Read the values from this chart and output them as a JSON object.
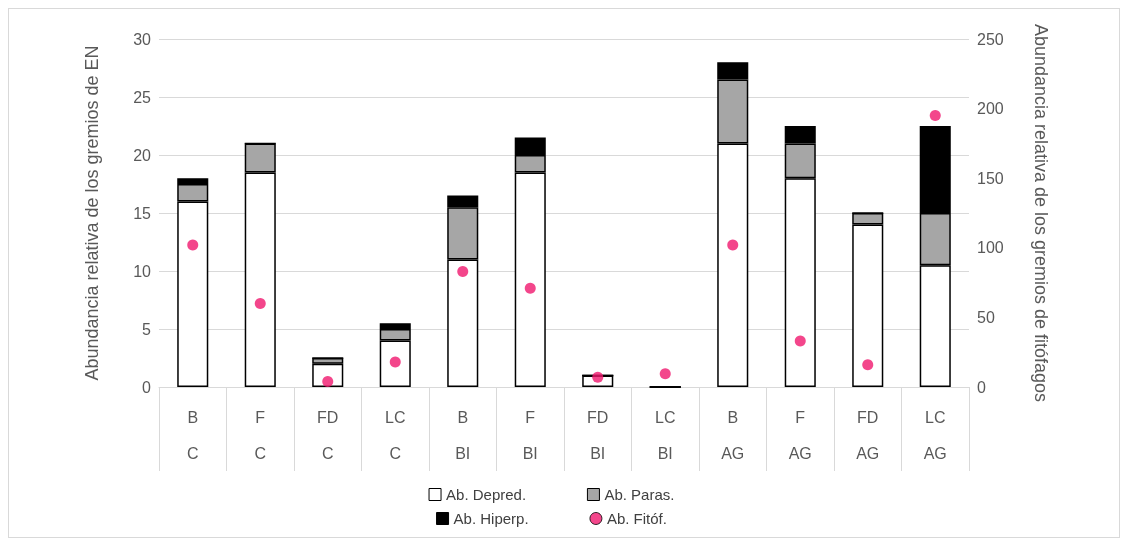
{
  "chart_data": {
    "type": "bar",
    "stacked": true,
    "ylabel": "Abundancia relativa de los gremios de EN",
    "y2label": "Abundancia relativa de los gremios de fitófagos",
    "categories": [
      "B\nC",
      "F\nC",
      "FD\nC",
      "LC\nC",
      "B\nBI",
      "F\nBI",
      "FD\nBI",
      "LC\nBI",
      "B\nAG",
      "F\nAG",
      "FD\nAG",
      "LC\nAG"
    ],
    "series": [
      {
        "name": "Ab. Depred.",
        "color": "#ffffff",
        "values": [
          16,
          18.5,
          2,
          4,
          11,
          18.5,
          1,
          0,
          21,
          18,
          14,
          10.5
        ]
      },
      {
        "name": "Ab. Paras.",
        "color": "#a6a6a6",
        "values": [
          1.5,
          2.5,
          0.5,
          1,
          4.5,
          1.5,
          0,
          0,
          5.5,
          3,
          1,
          4.5
        ]
      },
      {
        "name": "Ab. Hiperp.",
        "color": "#000000",
        "values": [
          0.5,
          0,
          0,
          0.5,
          1,
          1.5,
          0,
          0,
          1.5,
          1.5,
          0,
          7.5
        ]
      },
      {
        "name": "Ab. Fitóf.",
        "type": "scatter",
        "axis": "y2",
        "color": "#f0186e",
        "values": [
          102,
          60,
          4,
          18,
          83,
          71,
          7,
          9.5,
          102,
          33,
          16,
          195
        ]
      }
    ],
    "ylim": [
      0,
      30
    ],
    "yticks": [
      0,
      5,
      10,
      15,
      20,
      25,
      30
    ],
    "y2lim": [
      0,
      250
    ],
    "y2ticks": [
      0,
      50,
      100,
      150,
      200,
      250
    ],
    "grid": "y",
    "legend": "bottom",
    "marker": "circle"
  }
}
